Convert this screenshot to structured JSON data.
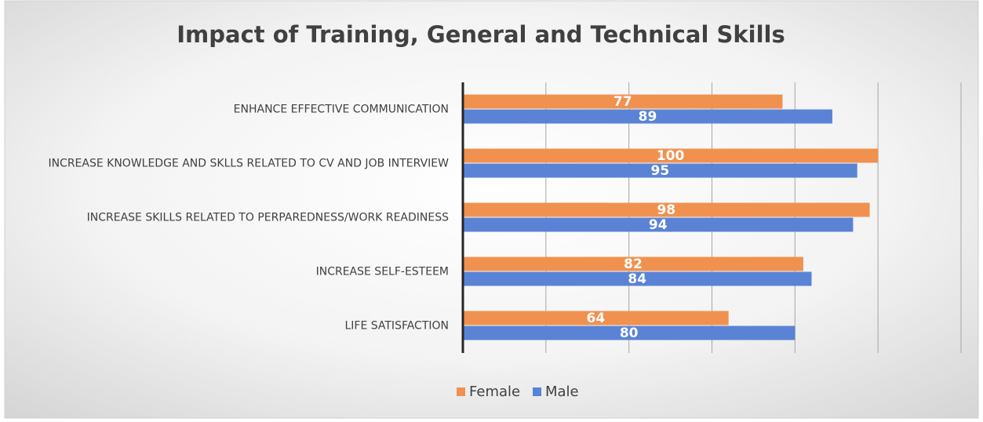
{
  "chart_data": {
    "type": "hbar",
    "title": "Impact of Training, General and Technical Skills",
    "categories": [
      "ENHANCE EFFECTIVE COMMUNICATION",
      "INCREASE KNOWLEDGE AND SKLLS RELATED TO CV AND JOB INTERVIEW",
      "INCREASE SKILLS RELATED TO PERPAREDNESS/WORK READINESS",
      "INCREASE SELF-ESTEEM",
      "LIFE SATISFACTION"
    ],
    "series": [
      {
        "name": "Female",
        "color": "#f0914f",
        "values": [
          77,
          100,
          98,
          82,
          64
        ]
      },
      {
        "name": "Male",
        "color": "#5a83d5",
        "values": [
          89,
          95,
          94,
          84,
          80
        ]
      }
    ],
    "xlim": [
      0,
      120
    ],
    "xticks": [
      0,
      20,
      40,
      60,
      80,
      100,
      120
    ],
    "grid": true,
    "legend": "bottom"
  }
}
